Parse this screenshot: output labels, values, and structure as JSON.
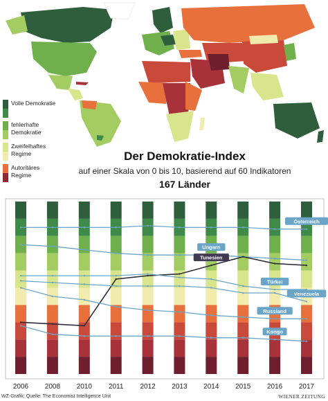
{
  "header": {
    "title": "Der Demokratie-Index",
    "subtitle": "auf einer Skala von 0 bis 10, basierend auf 60 Indikatoren",
    "count": "167 Länder"
  },
  "legend": [
    {
      "label": "Volle Demokratie",
      "colors": [
        "#2e5e3c",
        "#3f8a48"
      ]
    },
    {
      "label": "fehlerhafte Demokratie",
      "colors": [
        "#6fb04d",
        "#a3cc62"
      ]
    },
    {
      "label": "Zweifelhaftes Regime",
      "colors": [
        "#d9e58c",
        "#f1ebad"
      ]
    },
    {
      "label": "Autoritäres Regime",
      "colors": [
        "#e8703c",
        "#8b2a33"
      ]
    }
  ],
  "footer": {
    "source": "WZ-Grafik; Quelle: The Economist Intelligence Unit",
    "brand": "WIENER ZEITUNG"
  },
  "colors": {
    "turkey_line": "#2f2f3a",
    "other_lines": "#6aa5c8",
    "label_bg": "#6aa5c8",
    "tunesien_label_bg": "#3f3a52"
  },
  "chart_data": {
    "type": "line",
    "x": [
      2006,
      2008,
      2010,
      2011,
      2012,
      2013,
      2014,
      2015,
      2016,
      2017
    ],
    "ylim": [
      0,
      10
    ],
    "yaxis_ticks_visible": false,
    "grid": false,
    "band_scale": [
      {
        "from": 9.0,
        "to": 10.0,
        "color": "#2e5e3c"
      },
      {
        "from": 8.0,
        "to": 9.0,
        "color": "#3f8a48"
      },
      {
        "from": 7.0,
        "to": 8.0,
        "color": "#6fb04d"
      },
      {
        "from": 6.0,
        "to": 7.0,
        "color": "#a3cc62"
      },
      {
        "from": 5.0,
        "to": 6.0,
        "color": "#d9e58c"
      },
      {
        "from": 4.0,
        "to": 5.0,
        "color": "#f1ebad"
      },
      {
        "from": 3.0,
        "to": 4.0,
        "color": "#e8703c"
      },
      {
        "from": 2.0,
        "to": 3.0,
        "color": "#c94a3b"
      },
      {
        "from": 1.0,
        "to": 2.0,
        "color": "#a8323a"
      },
      {
        "from": 0.0,
        "to": 1.0,
        "color": "#6e1e2c"
      }
    ],
    "series": [
      {
        "name": "Österreich",
        "values": [
          8.5,
          8.5,
          8.5,
          8.5,
          8.6,
          8.5,
          8.5,
          8.5,
          8.4,
          8.4
        ]
      },
      {
        "name": "Ungarn",
        "values": [
          7.5,
          7.4,
          7.2,
          7.0,
          6.9,
          6.9,
          6.9,
          6.8,
          6.7,
          6.6
        ]
      },
      {
        "name": "Tunesien",
        "values": [
          3.0,
          2.9,
          2.8,
          5.5,
          5.7,
          5.8,
          6.3,
          6.8,
          6.4,
          6.3
        ]
      },
      {
        "name": "Türkei",
        "values": [
          5.7,
          5.7,
          5.7,
          5.7,
          5.8,
          5.6,
          5.5,
          5.1,
          4.9,
          4.9
        ]
      },
      {
        "name": "Venezuela",
        "values": [
          5.4,
          5.3,
          5.2,
          5.1,
          5.1,
          5.1,
          5.0,
          4.7,
          4.7,
          4.2
        ]
      },
      {
        "name": "Russland",
        "values": [
          5.0,
          4.5,
          4.3,
          3.9,
          3.7,
          3.6,
          3.4,
          3.3,
          3.2,
          3.2
        ]
      },
      {
        "name": "Kongo",
        "values": [
          2.8,
          2.3,
          2.2,
          2.2,
          2.2,
          2.2,
          2.1,
          2.1,
          2.0,
          1.9
        ]
      }
    ]
  }
}
